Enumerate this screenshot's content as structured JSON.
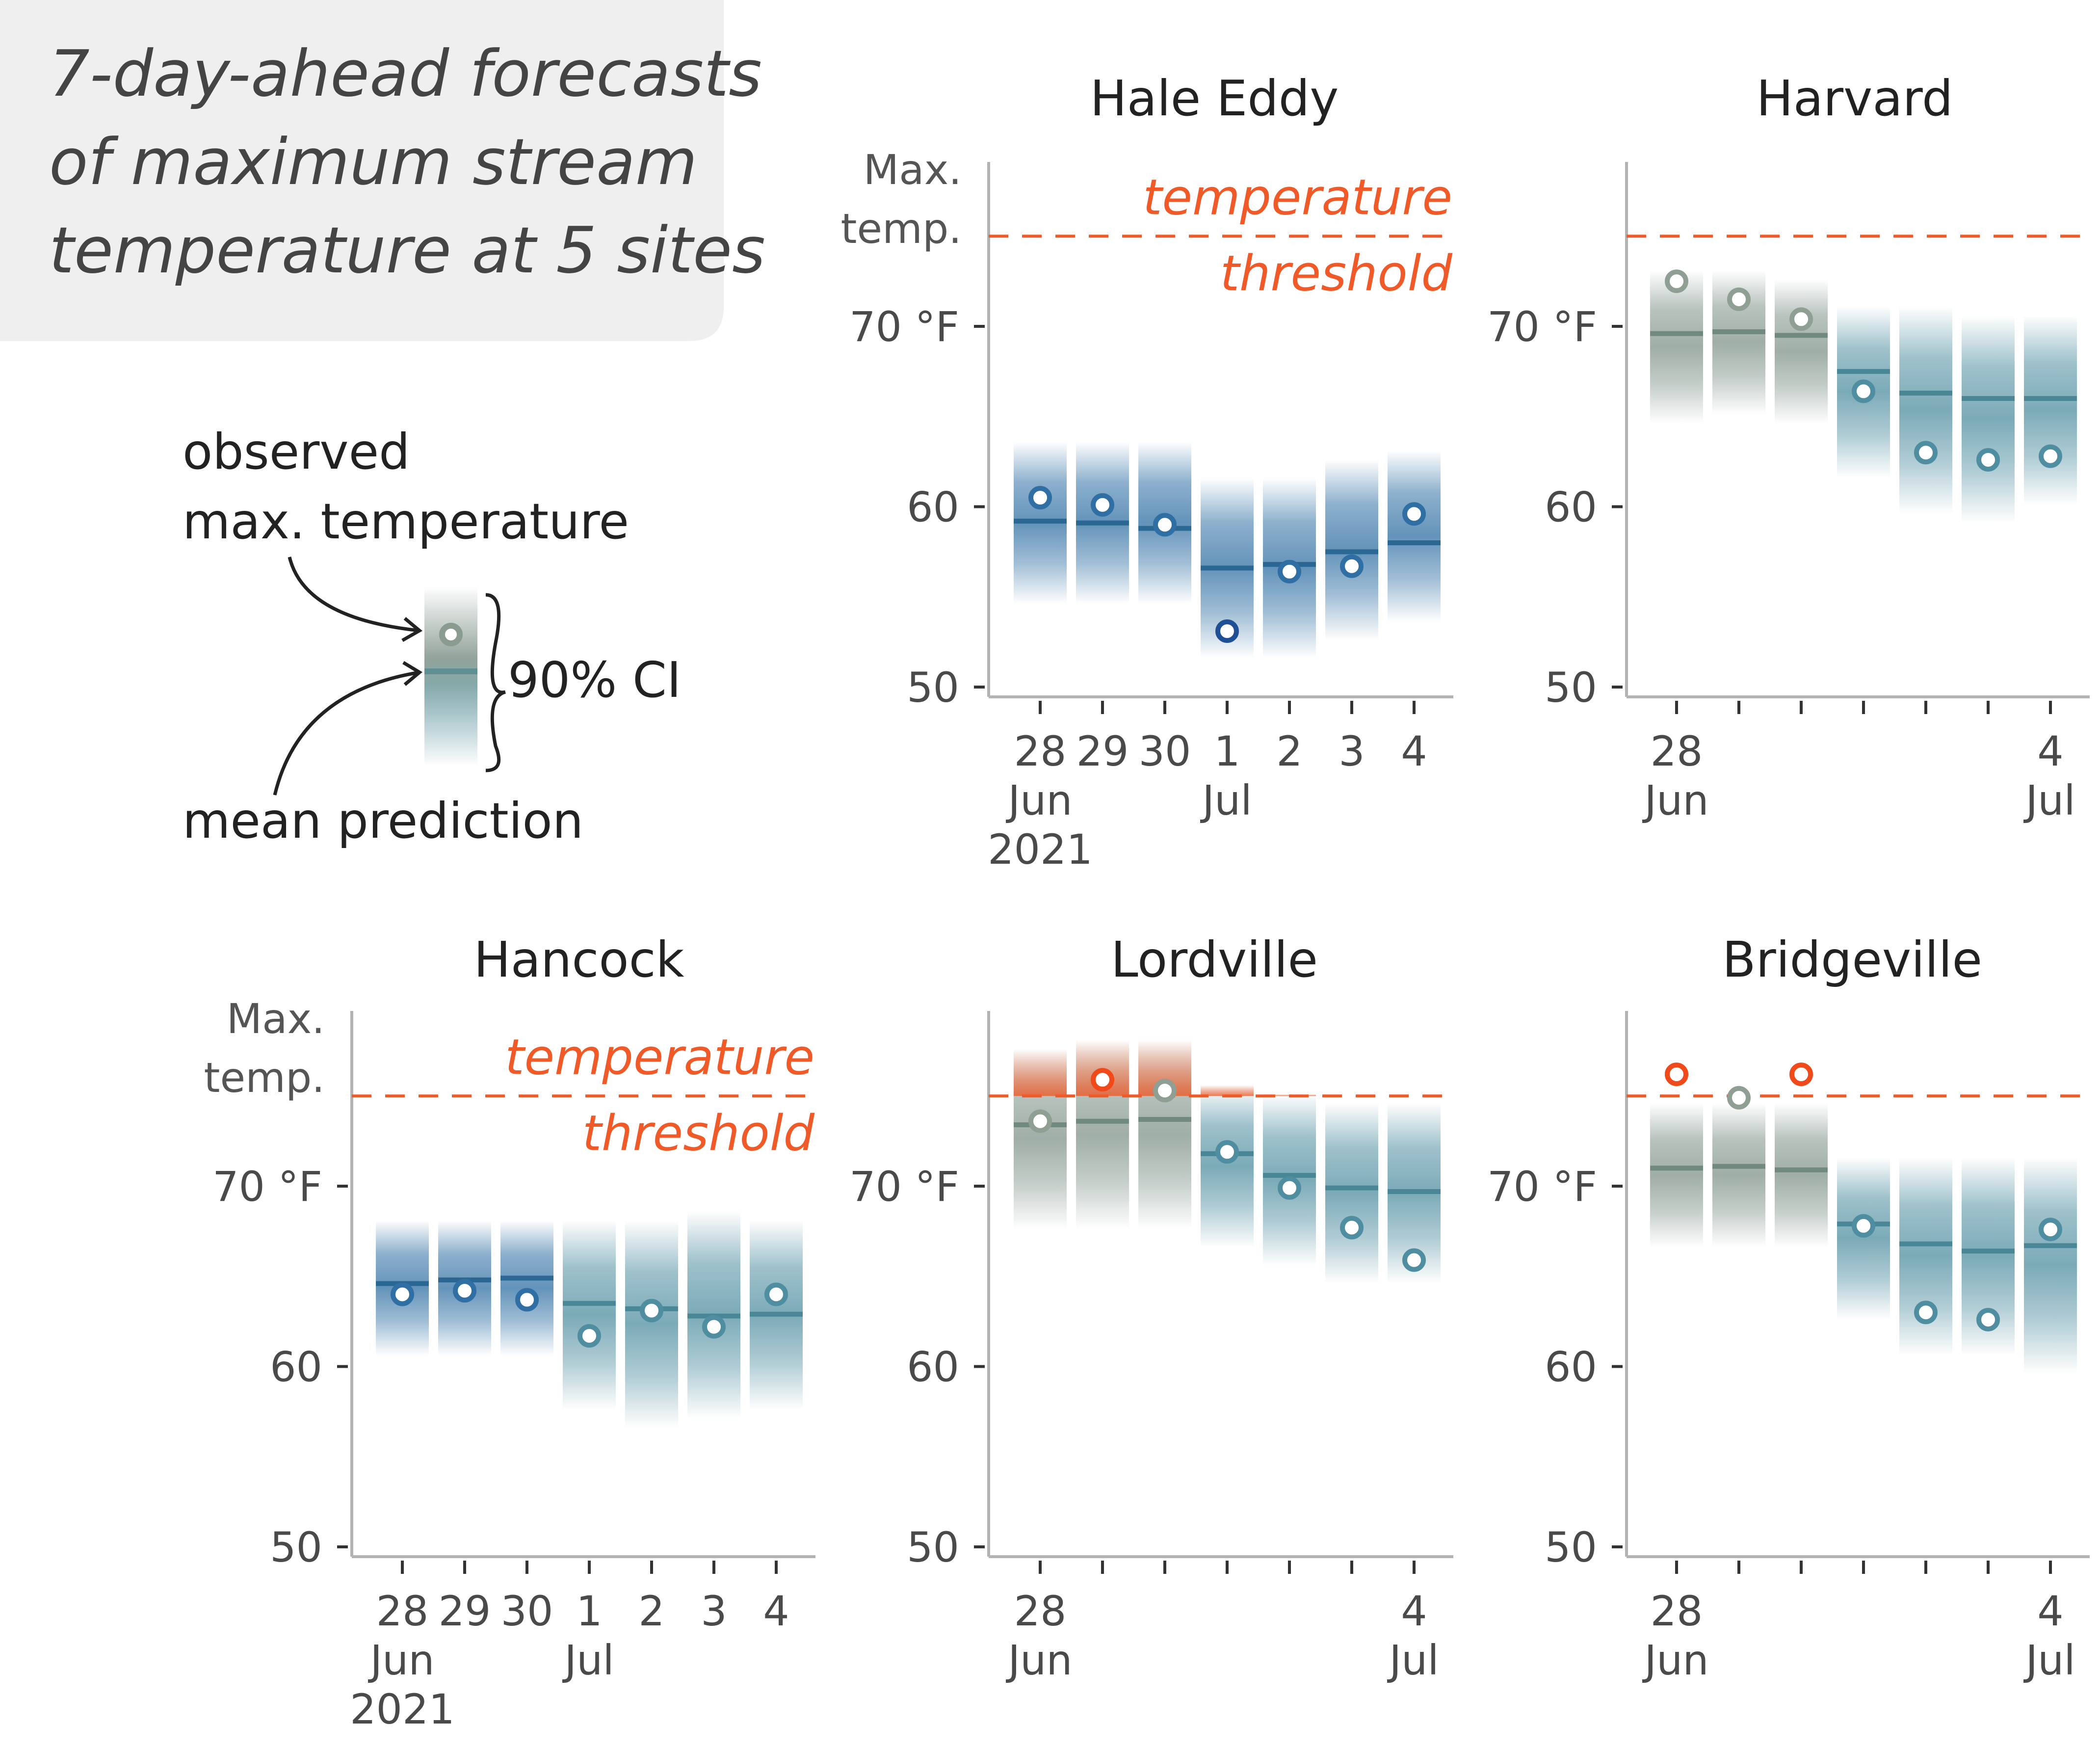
{
  "title": {
    "lines": [
      "7-day-ahead forecasts",
      "of maximum stream",
      "temperature at 5 sites"
    ],
    "box_color": "#efefef"
  },
  "legend": {
    "observed_lines": [
      "observed",
      "max. temperature"
    ],
    "ci_label": "90% CI",
    "mean_label": "mean prediction"
  },
  "threshold_label_lines": [
    "temperature",
    "threshold"
  ],
  "ylabel_lines": [
    "Max.",
    "temp."
  ],
  "colors": {
    "blue": "#2f6fa3",
    "teal": "#4f8ea0",
    "gray": "#7f9389",
    "red": "#f05a28",
    "threshold": "#f05a28"
  },
  "chart_data": [
    {
      "type": "range",
      "title": "Hale Eddy",
      "threshold": 75,
      "ylim": [
        50,
        79
      ],
      "yticks": [
        50,
        60,
        70
      ],
      "ytick_labels": [
        "50",
        "60",
        "70 °F"
      ],
      "x_dates": [
        "2021-06-28",
        "2021-06-29",
        "2021-06-30",
        "2021-07-01",
        "2021-07-02",
        "2021-07-03",
        "2021-07-04"
      ],
      "xtick_labels": [
        [
          "28",
          "Jun",
          "2021"
        ],
        [
          "29"
        ],
        [
          "30"
        ],
        [
          "1",
          "Jul"
        ],
        [
          "2"
        ],
        [
          "3"
        ],
        [
          "4"
        ]
      ],
      "mean": [
        59.2,
        59.1,
        58.8,
        56.6,
        56.8,
        57.5,
        58.0
      ],
      "lower": [
        54.6,
        54.6,
        54.6,
        51.6,
        51.6,
        52.6,
        53.6
      ],
      "upper": [
        63.6,
        63.6,
        63.6,
        61.6,
        61.6,
        62.6,
        63.1
      ],
      "observed": [
        60.5,
        60.1,
        59.0,
        53.1,
        56.4,
        56.7,
        59.6
      ],
      "colors": [
        "blue",
        "blue",
        "blue",
        "blue",
        "blue",
        "blue",
        "blue"
      ],
      "show_threshold_label": true
    },
    {
      "type": "range",
      "title": "Harvard",
      "threshold": 75,
      "ylim": [
        50,
        79
      ],
      "yticks": [
        50,
        60,
        70
      ],
      "ytick_labels": [
        "50",
        "60",
        "70 °F"
      ],
      "x_dates": [
        "2021-06-28",
        "2021-06-29",
        "2021-06-30",
        "2021-07-01",
        "2021-07-02",
        "2021-07-03",
        "2021-07-04"
      ],
      "xtick_labels": [
        [
          "28",
          "Jun"
        ],
        [],
        [],
        [],
        [],
        [],
        [
          "4",
          "Jul"
        ]
      ],
      "mean": [
        69.6,
        69.7,
        69.5,
        67.5,
        66.3,
        66.0,
        66.0
      ],
      "lower": [
        64.6,
        65.1,
        64.6,
        61.6,
        59.6,
        59.1,
        60.1
      ],
      "upper": [
        73.1,
        73.1,
        72.6,
        71.1,
        71.1,
        70.6,
        70.6
      ],
      "observed": [
        72.5,
        71.5,
        70.4,
        66.4,
        63.0,
        62.6,
        62.8
      ],
      "colors": [
        "gray",
        "gray",
        "gray",
        "teal",
        "teal",
        "teal",
        "teal"
      ],
      "show_threshold_label": false
    },
    {
      "type": "range",
      "title": "Hancock",
      "threshold": 75,
      "ylim": [
        50,
        79
      ],
      "yticks": [
        50,
        60,
        70
      ],
      "ytick_labels": [
        "50",
        "60",
        "70 °F"
      ],
      "x_dates": [
        "2021-06-28",
        "2021-06-29",
        "2021-06-30",
        "2021-07-01",
        "2021-07-02",
        "2021-07-03",
        "2021-07-04"
      ],
      "xtick_labels": [
        [
          "28",
          "Jun",
          "2021"
        ],
        [
          "29"
        ],
        [
          "30"
        ],
        [
          "1",
          "Jul"
        ],
        [
          "2"
        ],
        [
          "3"
        ],
        [
          "4"
        ]
      ],
      "mean": [
        64.6,
        64.8,
        64.9,
        63.5,
        63.2,
        62.8,
        62.9
      ],
      "lower": [
        60.6,
        60.6,
        60.6,
        57.6,
        56.6,
        57.1,
        57.6
      ],
      "upper": [
        68.1,
        68.1,
        68.1,
        68.1,
        68.1,
        68.6,
        68.1
      ],
      "observed": [
        64.0,
        64.2,
        63.7,
        61.7,
        63.1,
        62.2,
        64.0
      ],
      "colors": [
        "blue",
        "blue",
        "blue",
        "teal",
        "teal",
        "teal",
        "teal"
      ],
      "show_threshold_label": true
    },
    {
      "type": "range",
      "title": "Lordville",
      "threshold": 75,
      "ylim": [
        50,
        79
      ],
      "yticks": [
        50,
        60,
        70
      ],
      "ytick_labels": [
        "50",
        "60",
        "70 °F"
      ],
      "x_dates": [
        "2021-06-28",
        "2021-06-29",
        "2021-06-30",
        "2021-07-01",
        "2021-07-02",
        "2021-07-03",
        "2021-07-04"
      ],
      "xtick_labels": [
        [
          "28",
          "Jun"
        ],
        [],
        [],
        [],
        [],
        [],
        [
          "4",
          "Jul"
        ]
      ],
      "mean": [
        73.4,
        73.6,
        73.7,
        71.8,
        70.6,
        69.9,
        69.7
      ],
      "lower": [
        67.6,
        67.6,
        67.6,
        66.6,
        65.6,
        64.6,
        64.6
      ],
      "upper": [
        77.6,
        78.1,
        78.1,
        75.6,
        75.1,
        74.6,
        74.6
      ],
      "observed": [
        73.6,
        75.9,
        75.3,
        71.9,
        69.9,
        67.7,
        65.9
      ],
      "colors": [
        "gray",
        "gray",
        "gray",
        "teal",
        "teal",
        "teal",
        "teal"
      ],
      "show_threshold_label": false
    },
    {
      "type": "range",
      "title": "Bridgeville",
      "threshold": 75,
      "ylim": [
        50,
        79
      ],
      "yticks": [
        50,
        60,
        70
      ],
      "ytick_labels": [
        "50",
        "60",
        "70 °F"
      ],
      "x_dates": [
        "2021-06-28",
        "2021-06-29",
        "2021-06-30",
        "2021-07-01",
        "2021-07-02",
        "2021-07-03",
        "2021-07-04"
      ],
      "xtick_labels": [
        [
          "28",
          "Jun"
        ],
        [],
        [],
        [],
        [],
        [],
        [
          "4",
          "Jul"
        ]
      ],
      "mean": [
        71.0,
        71.1,
        70.9,
        67.9,
        66.8,
        66.4,
        66.7
      ],
      "lower": [
        66.6,
        66.6,
        66.6,
        62.6,
        60.6,
        60.6,
        59.6
      ],
      "upper": [
        74.6,
        74.6,
        74.6,
        71.6,
        71.6,
        71.6,
        71.6
      ],
      "observed": [
        76.2,
        74.9,
        76.2,
        67.8,
        63.0,
        62.6,
        67.6
      ],
      "colors": [
        "gray",
        "gray",
        "gray",
        "teal",
        "teal",
        "teal",
        "teal"
      ],
      "observed_colors": [
        "red",
        null,
        "red",
        null,
        null,
        null,
        null
      ],
      "show_threshold_label": false
    }
  ]
}
